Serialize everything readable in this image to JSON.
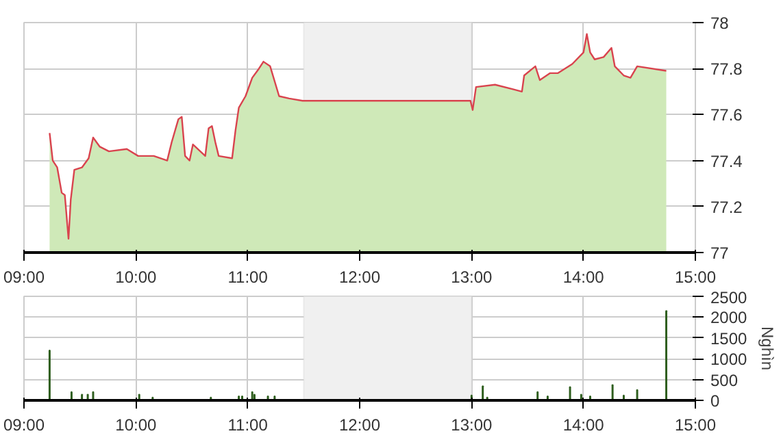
{
  "chart_data": [
    {
      "type": "area",
      "series": [
        {
          "color": "#cfe9b8",
          "x": [
            9.229,
            9.257,
            9.297,
            9.337,
            9.365,
            9.398,
            9.418,
            9.45,
            9.518,
            9.578,
            9.618,
            9.678,
            9.759,
            9.919,
            10.02,
            10.16,
            10.28,
            10.32,
            10.38,
            10.41,
            10.44,
            10.48,
            10.51,
            10.62,
            10.65,
            10.68,
            10.71,
            10.74,
            10.86,
            10.89,
            10.92,
            10.98,
            11.04,
            11.1,
            11.14,
            11.2,
            11.28,
            11.37,
            11.49,
            12.99,
            13.01,
            13.04,
            13.21,
            13.37,
            13.45,
            13.47,
            13.57,
            13.61,
            13.7,
            13.77,
            13.9,
            14.0,
            14.03,
            14.06,
            14.1,
            14.18,
            14.25,
            14.28,
            14.36,
            14.42,
            14.48,
            14.74
          ],
          "values": [
            77.52,
            77.4,
            77.37,
            77.26,
            77.25,
            77.06,
            77.23,
            77.36,
            77.37,
            77.41,
            77.5,
            77.46,
            77.44,
            77.45,
            77.42,
            77.42,
            77.4,
            77.48,
            77.58,
            77.59,
            77.42,
            77.4,
            77.47,
            77.42,
            77.54,
            77.55,
            77.48,
            77.42,
            77.41,
            77.53,
            77.63,
            77.68,
            77.76,
            77.8,
            77.83,
            77.81,
            77.68,
            77.67,
            77.66,
            77.66,
            77.62,
            77.72,
            77.73,
            77.71,
            77.7,
            77.77,
            77.81,
            77.75,
            77.78,
            77.78,
            77.82,
            77.87,
            77.95,
            77.87,
            77.84,
            77.85,
            77.89,
            77.81,
            77.77,
            77.76,
            77.81,
            77.79
          ]
        },
        {
          "type": "line",
          "color": "#d9434e",
          "x": [
            9.229,
            9.257,
            9.297,
            9.337,
            9.365,
            9.398,
            9.418,
            9.45,
            9.518,
            9.578,
            9.618,
            9.678,
            9.759,
            9.919,
            10.02,
            10.16,
            10.28,
            10.32,
            10.38,
            10.41,
            10.44,
            10.48,
            10.51,
            10.62,
            10.65,
            10.68,
            10.71,
            10.74,
            10.86,
            10.89,
            10.92,
            10.98,
            11.04,
            11.1,
            11.14,
            11.2,
            11.28,
            11.37,
            11.49,
            12.99,
            13.01,
            13.04,
            13.21,
            13.37,
            13.45,
            13.47,
            13.57,
            13.61,
            13.7,
            13.77,
            13.9,
            14.0,
            14.03,
            14.06,
            14.1,
            14.18,
            14.25,
            14.28,
            14.36,
            14.42,
            14.48,
            14.74
          ],
          "values": [
            77.52,
            77.4,
            77.37,
            77.26,
            77.25,
            77.06,
            77.23,
            77.36,
            77.37,
            77.41,
            77.5,
            77.46,
            77.44,
            77.45,
            77.42,
            77.42,
            77.4,
            77.48,
            77.58,
            77.59,
            77.42,
            77.4,
            77.47,
            77.42,
            77.54,
            77.55,
            77.48,
            77.42,
            77.41,
            77.53,
            77.63,
            77.68,
            77.76,
            77.8,
            77.83,
            77.81,
            77.68,
            77.67,
            77.66,
            77.66,
            77.62,
            77.72,
            77.73,
            77.71,
            77.7,
            77.77,
            77.81,
            77.75,
            77.78,
            77.78,
            77.82,
            77.87,
            77.95,
            77.87,
            77.84,
            77.85,
            77.89,
            77.81,
            77.77,
            77.76,
            77.81,
            77.79
          ]
        }
      ],
      "xlim": [
        9,
        15
      ],
      "xticks": [
        {
          "value": 9,
          "label": "09:00"
        },
        {
          "value": 10,
          "label": "10:00"
        },
        {
          "value": 11,
          "label": "11:00"
        },
        {
          "value": 12,
          "label": "12:00"
        },
        {
          "value": 13,
          "label": "13:00"
        },
        {
          "value": 14,
          "label": "14:00"
        },
        {
          "value": 15,
          "label": "15:00"
        }
      ],
      "ylim": [
        77,
        78
      ],
      "yticks": [
        77,
        77.2,
        77.4,
        77.6,
        77.8,
        78
      ],
      "bands": [
        {
          "axis": "x",
          "from": 11.5,
          "to": 13,
          "color": "#f0f0f0"
        }
      ],
      "grid": true
    },
    {
      "type": "bar",
      "series": [
        {
          "color": "#2e5e1e",
          "x": [
            9.229,
            9.425,
            9.518,
            9.57,
            9.618,
            10.03,
            10.15,
            10.67,
            10.92,
            10.95,
            11.04,
            11.06,
            11.18,
            11.24,
            13.0,
            13.1,
            13.14,
            13.59,
            13.68,
            13.88,
            13.98,
            14.06,
            14.26,
            14.36,
            14.48,
            14.74
          ],
          "values": [
            1200,
            200,
            140,
            140,
            200,
            140,
            70,
            70,
            100,
            100,
            200,
            140,
            100,
            100,
            120,
            340,
            70,
            200,
            100,
            320,
            140,
            100,
            370,
            120,
            250,
            2150
          ]
        }
      ],
      "xlim": [
        9,
        15
      ],
      "xticks": [
        {
          "value": 9,
          "label": "09:00"
        },
        {
          "value": 10,
          "label": "10:00"
        },
        {
          "value": 11,
          "label": "11:00"
        },
        {
          "value": 12,
          "label": "12:00"
        },
        {
          "value": 13,
          "label": "13:00"
        },
        {
          "value": 14,
          "label": "14:00"
        },
        {
          "value": 15,
          "label": "15:00"
        }
      ],
      "ylim": [
        0,
        2500
      ],
      "yticks": [
        0,
        500,
        1000,
        1500,
        2000,
        2500
      ],
      "ylabel": "Nghìn",
      "bands": [
        {
          "axis": "x",
          "from": 11.5,
          "to": 13,
          "color": "#f0f0f0"
        }
      ],
      "grid": true
    }
  ]
}
